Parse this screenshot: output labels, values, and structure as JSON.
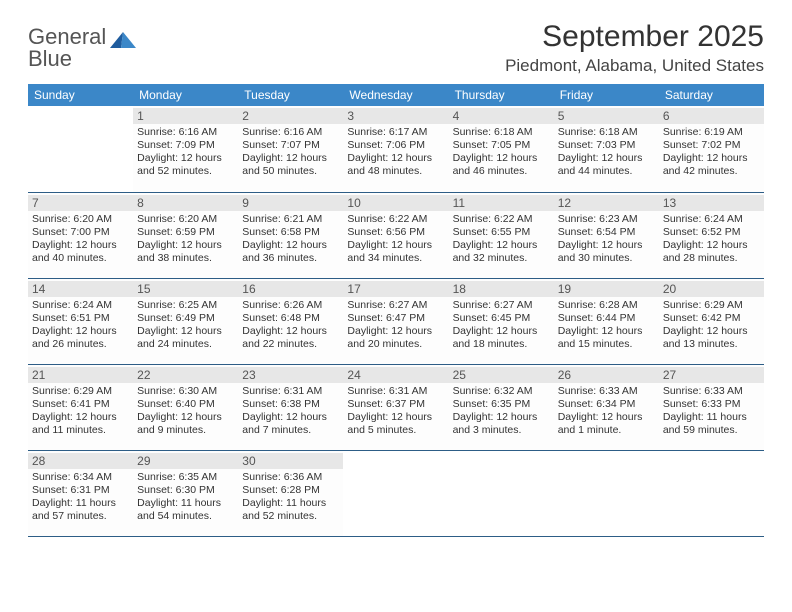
{
  "brand": {
    "line1": "General",
    "line2": "Blue"
  },
  "title": "September 2025",
  "location": "Piedmont, Alabama, United States",
  "colors": {
    "header_bg": "#3b87c8",
    "header_text": "#ffffff",
    "daynum_bg": "#e7e7e7",
    "row_divider": "#2d5d86",
    "brand_blue": "#2d74b8"
  },
  "day_headers": [
    "Sunday",
    "Monday",
    "Tuesday",
    "Wednesday",
    "Thursday",
    "Friday",
    "Saturday"
  ],
  "weeks": [
    [
      null,
      {
        "n": "1",
        "sr": "6:16 AM",
        "ss": "7:09 PM",
        "dl": "12 hours and 52 minutes."
      },
      {
        "n": "2",
        "sr": "6:16 AM",
        "ss": "7:07 PM",
        "dl": "12 hours and 50 minutes."
      },
      {
        "n": "3",
        "sr": "6:17 AM",
        "ss": "7:06 PM",
        "dl": "12 hours and 48 minutes."
      },
      {
        "n": "4",
        "sr": "6:18 AM",
        "ss": "7:05 PM",
        "dl": "12 hours and 46 minutes."
      },
      {
        "n": "5",
        "sr": "6:18 AM",
        "ss": "7:03 PM",
        "dl": "12 hours and 44 minutes."
      },
      {
        "n": "6",
        "sr": "6:19 AM",
        "ss": "7:02 PM",
        "dl": "12 hours and 42 minutes."
      }
    ],
    [
      {
        "n": "7",
        "sr": "6:20 AM",
        "ss": "7:00 PM",
        "dl": "12 hours and 40 minutes."
      },
      {
        "n": "8",
        "sr": "6:20 AM",
        "ss": "6:59 PM",
        "dl": "12 hours and 38 minutes."
      },
      {
        "n": "9",
        "sr": "6:21 AM",
        "ss": "6:58 PM",
        "dl": "12 hours and 36 minutes."
      },
      {
        "n": "10",
        "sr": "6:22 AM",
        "ss": "6:56 PM",
        "dl": "12 hours and 34 minutes."
      },
      {
        "n": "11",
        "sr": "6:22 AM",
        "ss": "6:55 PM",
        "dl": "12 hours and 32 minutes."
      },
      {
        "n": "12",
        "sr": "6:23 AM",
        "ss": "6:54 PM",
        "dl": "12 hours and 30 minutes."
      },
      {
        "n": "13",
        "sr": "6:24 AM",
        "ss": "6:52 PM",
        "dl": "12 hours and 28 minutes."
      }
    ],
    [
      {
        "n": "14",
        "sr": "6:24 AM",
        "ss": "6:51 PM",
        "dl": "12 hours and 26 minutes."
      },
      {
        "n": "15",
        "sr": "6:25 AM",
        "ss": "6:49 PM",
        "dl": "12 hours and 24 minutes."
      },
      {
        "n": "16",
        "sr": "6:26 AM",
        "ss": "6:48 PM",
        "dl": "12 hours and 22 minutes."
      },
      {
        "n": "17",
        "sr": "6:27 AM",
        "ss": "6:47 PM",
        "dl": "12 hours and 20 minutes."
      },
      {
        "n": "18",
        "sr": "6:27 AM",
        "ss": "6:45 PM",
        "dl": "12 hours and 18 minutes."
      },
      {
        "n": "19",
        "sr": "6:28 AM",
        "ss": "6:44 PM",
        "dl": "12 hours and 15 minutes."
      },
      {
        "n": "20",
        "sr": "6:29 AM",
        "ss": "6:42 PM",
        "dl": "12 hours and 13 minutes."
      }
    ],
    [
      {
        "n": "21",
        "sr": "6:29 AM",
        "ss": "6:41 PM",
        "dl": "12 hours and 11 minutes."
      },
      {
        "n": "22",
        "sr": "6:30 AM",
        "ss": "6:40 PM",
        "dl": "12 hours and 9 minutes."
      },
      {
        "n": "23",
        "sr": "6:31 AM",
        "ss": "6:38 PM",
        "dl": "12 hours and 7 minutes."
      },
      {
        "n": "24",
        "sr": "6:31 AM",
        "ss": "6:37 PM",
        "dl": "12 hours and 5 minutes."
      },
      {
        "n": "25",
        "sr": "6:32 AM",
        "ss": "6:35 PM",
        "dl": "12 hours and 3 minutes."
      },
      {
        "n": "26",
        "sr": "6:33 AM",
        "ss": "6:34 PM",
        "dl": "12 hours and 1 minute."
      },
      {
        "n": "27",
        "sr": "6:33 AM",
        "ss": "6:33 PM",
        "dl": "11 hours and 59 minutes."
      }
    ],
    [
      {
        "n": "28",
        "sr": "6:34 AM",
        "ss": "6:31 PM",
        "dl": "11 hours and 57 minutes."
      },
      {
        "n": "29",
        "sr": "6:35 AM",
        "ss": "6:30 PM",
        "dl": "11 hours and 54 minutes."
      },
      {
        "n": "30",
        "sr": "6:36 AM",
        "ss": "6:28 PM",
        "dl": "11 hours and 52 minutes."
      },
      null,
      null,
      null,
      null
    ]
  ],
  "labels": {
    "sunrise": "Sunrise:",
    "sunset": "Sunset:",
    "daylight": "Daylight:"
  }
}
